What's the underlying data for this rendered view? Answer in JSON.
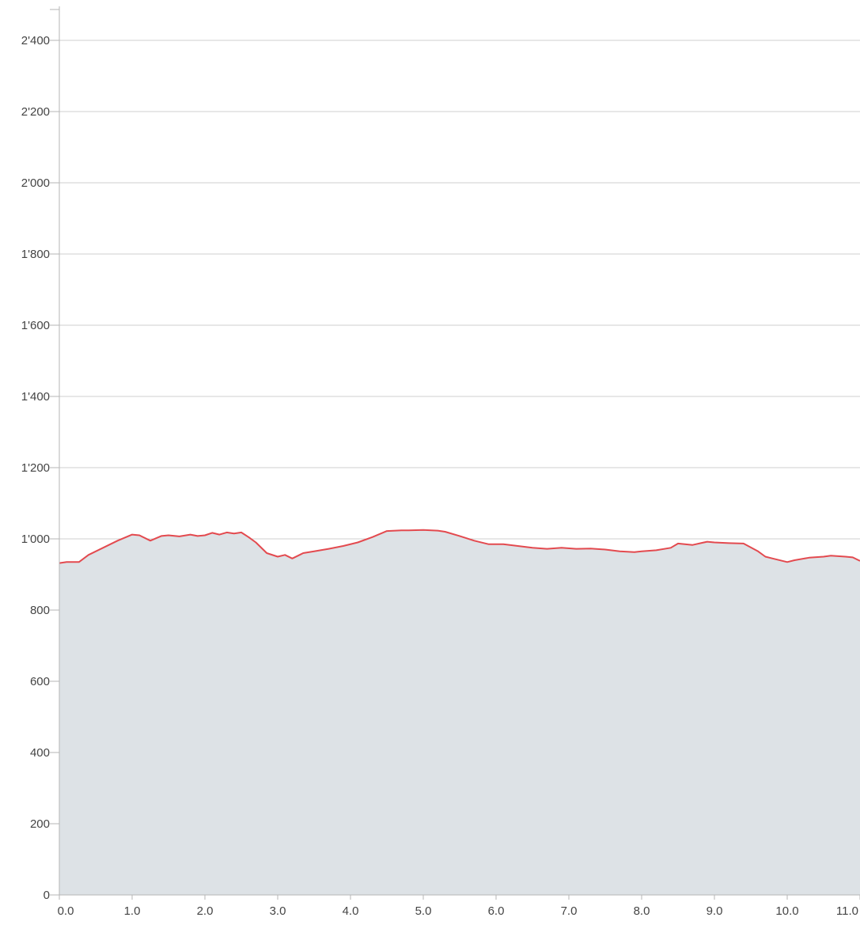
{
  "chart_data": {
    "type": "area",
    "title": "",
    "xlabel": "",
    "ylabel": "",
    "xlim": [
      0,
      11.0
    ],
    "ylim": [
      0,
      2500
    ],
    "grid": true,
    "legend": "none",
    "x_ticks": [
      {
        "value": 0,
        "label": "0.0"
      },
      {
        "value": 1,
        "label": "1.0"
      },
      {
        "value": 2,
        "label": "2.0"
      },
      {
        "value": 3,
        "label": "3.0"
      },
      {
        "value": 4,
        "label": "4.0"
      },
      {
        "value": 5,
        "label": "5.0"
      },
      {
        "value": 6,
        "label": "6.0"
      },
      {
        "value": 7,
        "label": "7.0"
      },
      {
        "value": 8,
        "label": "8.0"
      },
      {
        "value": 9,
        "label": "9.0"
      },
      {
        "value": 10,
        "label": "10.0"
      },
      {
        "value": 11,
        "label": "11.0"
      }
    ],
    "y_ticks": [
      {
        "value": 0,
        "label": "0"
      },
      {
        "value": 200,
        "label": "200"
      },
      {
        "value": 400,
        "label": "400"
      },
      {
        "value": 600,
        "label": "600"
      },
      {
        "value": 800,
        "label": "800"
      },
      {
        "value": 1000,
        "label": "1'000"
      },
      {
        "value": 1200,
        "label": "1'200"
      },
      {
        "value": 1400,
        "label": "1'400"
      },
      {
        "value": 1600,
        "label": "1'600"
      },
      {
        "value": 1800,
        "label": "1'800"
      },
      {
        "value": 2000,
        "label": "2'000"
      },
      {
        "value": 2200,
        "label": "2'200"
      },
      {
        "value": 2400,
        "label": "2'400"
      }
    ],
    "colors": {
      "line": "#e34a4f",
      "fill": "#dde2e6",
      "grid": "#cfcfcf",
      "axis": "#b5b5b5",
      "text": "#444444"
    },
    "series": [
      {
        "x": [
          0.0,
          0.1,
          0.27,
          0.4,
          0.6,
          0.8,
          1.0,
          1.1,
          1.25,
          1.4,
          1.5,
          1.65,
          1.8,
          1.9,
          2.0,
          2.1,
          2.2,
          2.3,
          2.4,
          2.5,
          2.6,
          2.7,
          2.85,
          3.0,
          3.1,
          3.2,
          3.3,
          3.35,
          3.5,
          3.7,
          3.9,
          4.1,
          4.3,
          4.5,
          4.7,
          4.8,
          5.0,
          5.2,
          5.3,
          5.5,
          5.7,
          5.9,
          6.1,
          6.3,
          6.5,
          6.7,
          6.9,
          7.1,
          7.3,
          7.5,
          7.7,
          7.9,
          8.0,
          8.2,
          8.4,
          8.5,
          8.7,
          8.9,
          9.0,
          9.2,
          9.4,
          9.6,
          9.7,
          9.8,
          10.0,
          10.1,
          10.3,
          10.5,
          10.6,
          10.8,
          10.9,
          11.0
        ],
        "y": [
          932,
          935,
          935,
          955,
          975,
          995,
          1012,
          1010,
          995,
          1008,
          1010,
          1007,
          1012,
          1008,
          1010,
          1017,
          1012,
          1018,
          1015,
          1018,
          1005,
          990,
          960,
          950,
          955,
          945,
          955,
          960,
          965,
          972,
          980,
          990,
          1005,
          1022,
          1024,
          1024,
          1025,
          1023,
          1020,
          1008,
          995,
          985,
          985,
          980,
          975,
          972,
          975,
          972,
          973,
          970,
          965,
          963,
          965,
          968,
          975,
          987,
          983,
          992,
          990,
          988,
          987,
          965,
          950,
          945,
          935,
          940,
          947,
          950,
          953,
          950,
          948,
          938
        ]
      }
    ]
  }
}
